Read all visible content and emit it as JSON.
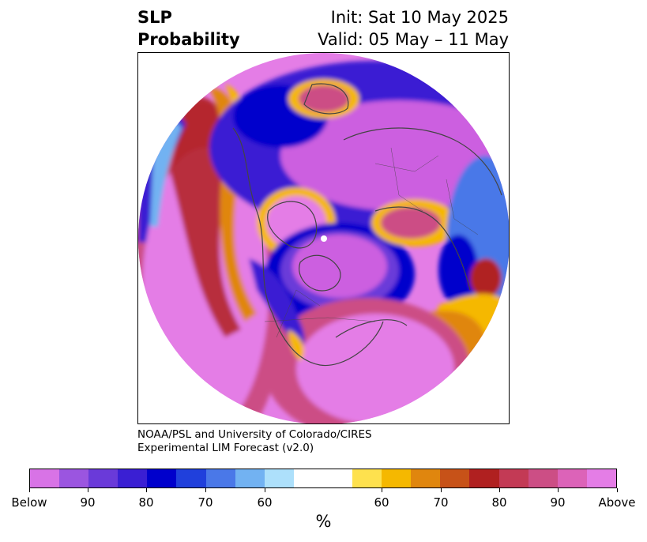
{
  "title": {
    "left_line1": "SLP",
    "left_line2": "Probability",
    "right_line1": "Init: Sat 10 May 2025",
    "right_line2": "Valid: 05 May – 11 May"
  },
  "credit": {
    "line1": "NOAA/PSL and University of Colorado/CIRES",
    "line2": "Experimental LIM Forecast (v2.0)"
  },
  "colorbar": {
    "unit": "%",
    "colors": [
      "#d873e6",
      "#9b55e0",
      "#6a3ad9",
      "#3a1fd3",
      "#0000cc",
      "#2040dc",
      "#4a78e8",
      "#72b2f2",
      "#ade0fb",
      "#ffffff",
      "#fee14e",
      "#f5b800",
      "#e0860e",
      "#c75218",
      "#b02020",
      "#c33a55",
      "#cc4e85",
      "#dc63b8",
      "#e47de6"
    ],
    "tick_labels": [
      "Below",
      "90",
      "80",
      "70",
      "60",
      "60",
      "70",
      "80",
      "90",
      "Above"
    ]
  },
  "map": {
    "projection": "north-polar-stereographic",
    "field": "sea-level-pressure-probability",
    "colors": {
      "below_strong": "#cc5ee0",
      "below_mid": "#3a1fd3",
      "below_deep": "#0000cc",
      "below_light": "#72b2f2",
      "below_faint": "#ade0fb",
      "above_strong": "#e47de6",
      "above_mid": "#cc4e85",
      "above_red": "#b02020",
      "above_orange": "#e0860e",
      "above_yellow": "#f5b800",
      "above_pale": "#fee14e",
      "coastline": "#444444"
    }
  }
}
